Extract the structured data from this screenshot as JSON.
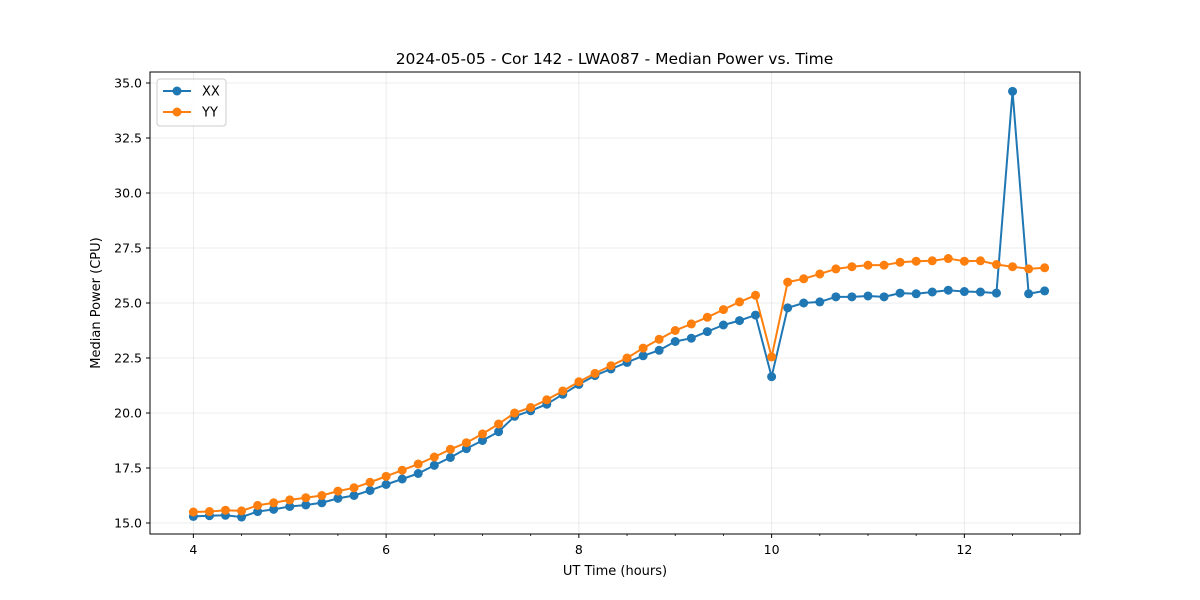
{
  "chart_data": {
    "type": "line",
    "title": "2024-05-05 - Cor 142 - LWA087 - Median Power vs. Time",
    "xlabel": "UT Time (hours)",
    "ylabel": "Median Power (CPU)",
    "xlim": [
      3.55,
      13.2
    ],
    "ylim": [
      14.5,
      35.5
    ],
    "xticks": [
      4,
      6,
      8,
      10,
      12
    ],
    "xtick_labels": [
      "4",
      "6",
      "8",
      "10",
      "12"
    ],
    "yticks": [
      15.0,
      17.5,
      20.0,
      22.5,
      25.0,
      27.5,
      30.0,
      32.5,
      35.0
    ],
    "ytick_labels": [
      "15.0",
      "17.5",
      "20.0",
      "22.5",
      "25.0",
      "27.5",
      "30.0",
      "32.5",
      "35.0"
    ],
    "grid": true,
    "legend_position": "top-left",
    "x": [
      4.0,
      4.167,
      4.333,
      4.5,
      4.667,
      4.833,
      5.0,
      5.167,
      5.333,
      5.5,
      5.667,
      5.833,
      6.0,
      6.167,
      6.333,
      6.5,
      6.667,
      6.833,
      7.0,
      7.167,
      7.333,
      7.5,
      7.667,
      7.833,
      8.0,
      8.167,
      8.333,
      8.5,
      8.667,
      8.833,
      9.0,
      9.167,
      9.333,
      9.5,
      9.667,
      9.833,
      10.0,
      10.167,
      10.333,
      10.5,
      10.667,
      10.833,
      11.0,
      11.167,
      11.333,
      11.5,
      11.667,
      11.833,
      12.0,
      12.167,
      12.333,
      12.5,
      12.667,
      12.833
    ],
    "series": [
      {
        "name": "XX",
        "color": "#1f77b4",
        "values": [
          15.3,
          15.33,
          15.35,
          15.27,
          15.52,
          15.62,
          15.75,
          15.82,
          15.92,
          16.12,
          16.25,
          16.48,
          16.75,
          17.0,
          17.25,
          17.62,
          17.98,
          18.38,
          18.75,
          19.15,
          19.85,
          20.1,
          20.4,
          20.85,
          21.3,
          21.7,
          22.0,
          22.3,
          22.6,
          22.85,
          23.25,
          23.4,
          23.7,
          24.0,
          24.2,
          24.45,
          21.65,
          24.78,
          25.0,
          25.05,
          25.28,
          25.28,
          25.32,
          25.28,
          25.45,
          25.42,
          25.5,
          25.58,
          25.52,
          25.5,
          25.45,
          34.62,
          25.42,
          25.55
        ]
      },
      {
        "name": "YY",
        "color": "#ff7f0e",
        "values": [
          15.5,
          15.52,
          15.58,
          15.55,
          15.8,
          15.92,
          16.05,
          16.15,
          16.25,
          16.45,
          16.6,
          16.85,
          17.12,
          17.4,
          17.68,
          18.0,
          18.35,
          18.65,
          19.05,
          19.5,
          20.0,
          20.25,
          20.6,
          21.0,
          21.42,
          21.8,
          22.15,
          22.5,
          22.95,
          23.35,
          23.75,
          24.05,
          24.35,
          24.7,
          25.05,
          25.35,
          22.55,
          25.95,
          26.1,
          26.32,
          26.55,
          26.65,
          26.72,
          26.72,
          26.85,
          26.9,
          26.92,
          27.02,
          26.9,
          26.92,
          26.75,
          26.65,
          26.55,
          26.6
        ]
      }
    ]
  }
}
